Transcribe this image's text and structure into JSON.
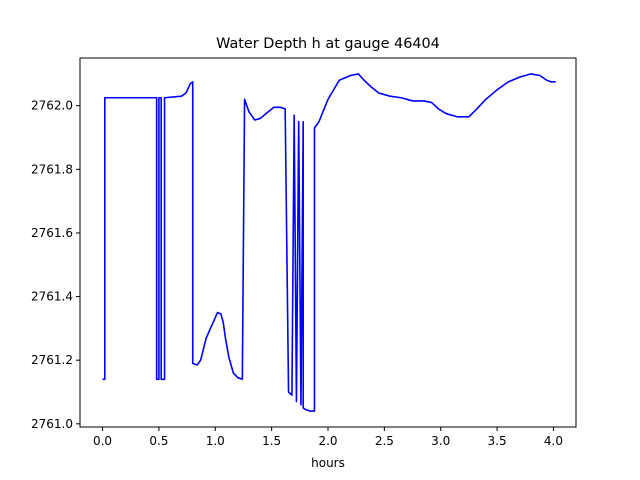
{
  "chart_data": {
    "type": "line",
    "title": "Water Depth h at gauge 46404",
    "xlabel": "hours",
    "ylabel": "",
    "xlim": [
      -0.2,
      4.2
    ],
    "ylim": [
      2760.99,
      2762.15
    ],
    "grid": false,
    "xticks": [
      0.0,
      0.5,
      1.0,
      1.5,
      2.0,
      2.5,
      3.0,
      3.5,
      4.0
    ],
    "xtick_labels": [
      "0.0",
      "0.5",
      "1.0",
      "1.5",
      "2.0",
      "2.5",
      "3.0",
      "3.5",
      "4.0"
    ],
    "yticks": [
      2761.0,
      2761.2,
      2761.4,
      2761.6,
      2761.8,
      2762.0
    ],
    "ytick_labels": [
      "2761.0",
      "2761.2",
      "2761.4",
      "2761.6",
      "2761.8",
      "2762.0"
    ],
    "series": [
      {
        "color": "#0000ff",
        "x": [
          0.0,
          0.02,
          0.02,
          0.48,
          0.48,
          0.5,
          0.5,
          0.52,
          0.52,
          0.55,
          0.55,
          0.7,
          0.74,
          0.78,
          0.8,
          0.8,
          0.84,
          0.87,
          0.92,
          0.97,
          1.02,
          1.05,
          1.07,
          1.09,
          1.12,
          1.16,
          1.2,
          1.24,
          1.26,
          1.26,
          1.3,
          1.35,
          1.4,
          1.45,
          1.52,
          1.58,
          1.62,
          1.65,
          1.65,
          1.68,
          1.7,
          1.7,
          1.72,
          1.72,
          1.74,
          1.74,
          1.76,
          1.76,
          1.78,
          1.78,
          1.8,
          1.84,
          1.88,
          1.88,
          1.92,
          2.0,
          2.1,
          2.2,
          2.27,
          2.32,
          2.38,
          2.45,
          2.55,
          2.65,
          2.75,
          2.85,
          2.92,
          2.98,
          3.05,
          3.15,
          3.25,
          3.32,
          3.4,
          3.5,
          3.6,
          3.7,
          3.8,
          3.88,
          3.94,
          3.98,
          4.02
        ],
        "values": [
          2761.14,
          2761.14,
          2762.025,
          2762.025,
          2761.14,
          2761.14,
          2762.025,
          2762.025,
          2761.14,
          2761.14,
          2762.025,
          2762.03,
          2762.04,
          2762.07,
          2762.075,
          2761.19,
          2761.185,
          2761.2,
          2761.27,
          2761.31,
          2761.35,
          2761.345,
          2761.32,
          2761.27,
          2761.21,
          2761.16,
          2761.145,
          2761.14,
          2762.02,
          2762.02,
          2761.98,
          2761.955,
          2761.96,
          2761.975,
          2761.995,
          2761.995,
          2761.99,
          2761.1,
          2761.1,
          2761.09,
          2761.97,
          2761.97,
          2761.07,
          2761.07,
          2761.95,
          2761.95,
          2761.06,
          2761.06,
          2761.95,
          2761.05,
          2761.045,
          2761.04,
          2761.04,
          2761.93,
          2761.95,
          2762.02,
          2762.08,
          2762.095,
          2762.1,
          2762.08,
          2762.06,
          2762.04,
          2762.03,
          2762.025,
          2762.015,
          2762.015,
          2762.01,
          2761.99,
          2761.975,
          2761.965,
          2761.965,
          2761.99,
          2762.02,
          2762.05,
          2762.075,
          2762.09,
          2762.1,
          2762.095,
          2762.08,
          2762.075,
          2762.075
        ]
      }
    ]
  }
}
